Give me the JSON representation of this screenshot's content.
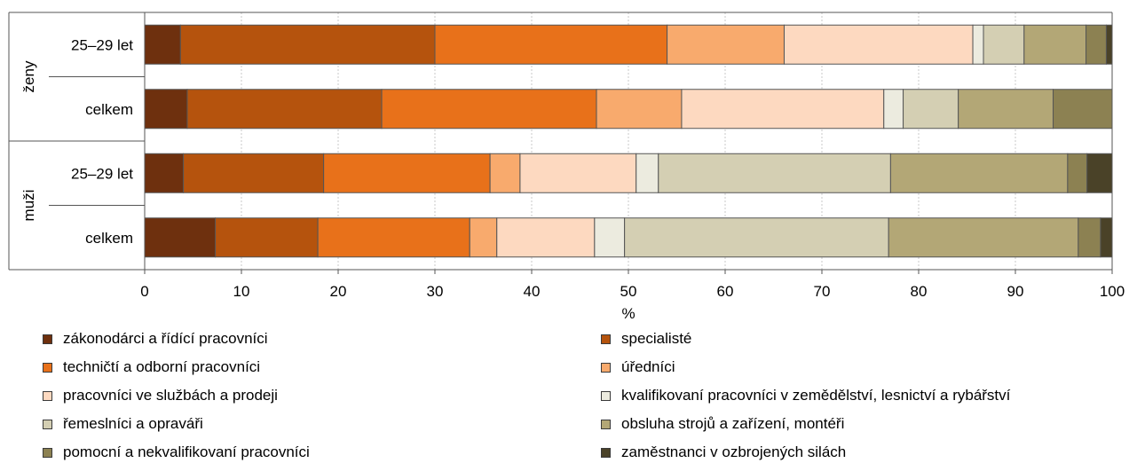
{
  "chart_data": {
    "type": "bar",
    "orientation": "horizontal",
    "stacked": true,
    "xlabel": "%",
    "ylabel": "",
    "xlim": [
      0,
      100
    ],
    "xticks": [
      "0",
      "10",
      "20",
      "30",
      "40",
      "50",
      "60",
      "70",
      "80",
      "90",
      "100"
    ],
    "groups": [
      {
        "label": "ženy",
        "rows": [
          "25–29 let",
          "celkem"
        ]
      },
      {
        "label": "muži",
        "rows": [
          "25–29 let",
          "celkem"
        ]
      }
    ],
    "categories": [
      "ženy 25–29 let",
      "ženy celkem",
      "muži 25–29 let",
      "muži celkem"
    ],
    "series": [
      {
        "name": "zákonodárci a řídící pracovníci",
        "color": "#6e300e",
        "values": [
          3.7,
          4.4,
          4.0,
          7.3
        ]
      },
      {
        "name": "specialisté",
        "color": "#b5530d",
        "values": [
          26.3,
          20.1,
          14.5,
          10.6
        ]
      },
      {
        "name": "techničtí a odborní pracovníci",
        "color": "#e8711a",
        "values": [
          24.0,
          22.2,
          17.2,
          15.7
        ]
      },
      {
        "name": "úředníci",
        "color": "#f8aa6d",
        "values": [
          12.1,
          8.8,
          3.1,
          2.8
        ]
      },
      {
        "name": "pracovníci ve službách a prodeji",
        "color": "#fdd9c0",
        "values": [
          19.5,
          20.9,
          12.0,
          10.1
        ]
      },
      {
        "name": "kvalifikovaní pracovníci v zemědělství, lesnictví a rybářství",
        "color": "#ecebdf",
        "values": [
          1.1,
          2.0,
          2.3,
          3.1
        ]
      },
      {
        "name": "řemeslníci a opraváři",
        "color": "#d4cfb3",
        "values": [
          4.2,
          5.7,
          24.0,
          27.3
        ]
      },
      {
        "name": "obsluha strojů a zařízení, montéři",
        "color": "#b3a776",
        "values": [
          6.4,
          9.8,
          18.3,
          19.6
        ]
      },
      {
        "name": "pomocní a nekvalifikovaní pracovníci",
        "color": "#8c8152",
        "values": [
          2.1,
          6.1,
          2.0,
          2.3
        ]
      },
      {
        "name": "zaměstnanci v ozbrojených silách",
        "color": "#4a4228",
        "values": [
          0.6,
          0.0,
          2.6,
          1.2
        ]
      }
    ],
    "grid": true,
    "legend": "bottom"
  }
}
